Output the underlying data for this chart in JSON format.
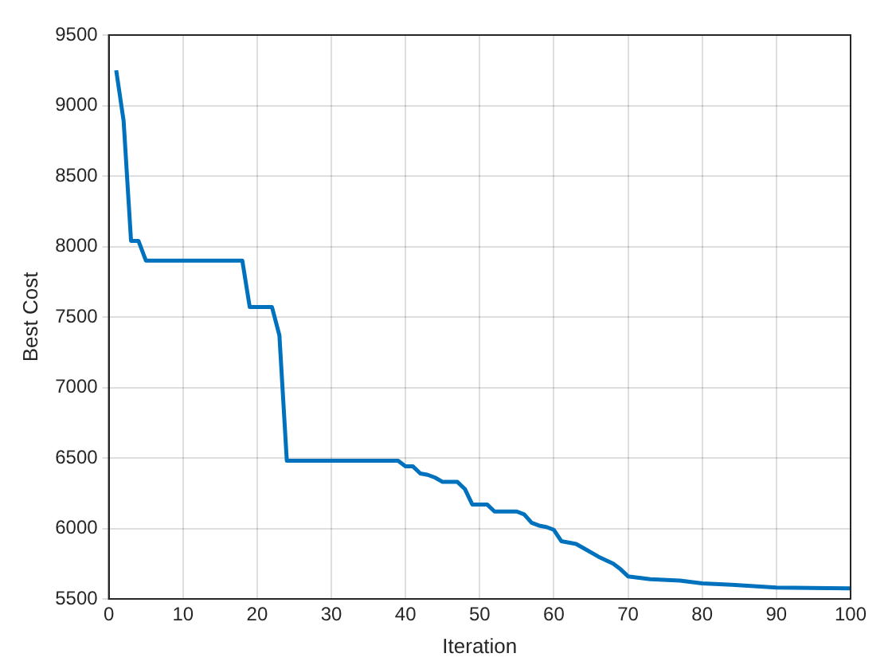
{
  "chart_data": {
    "type": "line",
    "xlabel": "Iteration",
    "ylabel": "Best Cost",
    "x": [
      1,
      2,
      3,
      4,
      5,
      18,
      19,
      22,
      23,
      24,
      39,
      40,
      41,
      42,
      43,
      44,
      45,
      47,
      48,
      49,
      50,
      51,
      52,
      55,
      56,
      57,
      58,
      59,
      60,
      61,
      63,
      64,
      66,
      68,
      69,
      70,
      73,
      77,
      80,
      84,
      90,
      100
    ],
    "series": [
      {
        "color": "#0072bd",
        "values": [
          9250,
          8890,
          8040,
          8040,
          7900,
          7900,
          7570,
          7570,
          7370,
          6480,
          6480,
          6440,
          6440,
          6390,
          6380,
          6360,
          6330,
          6330,
          6280,
          6170,
          6170,
          6170,
          6120,
          6120,
          6100,
          6040,
          6020,
          6010,
          5990,
          5910,
          5890,
          5860,
          5800,
          5750,
          5710,
          5660,
          5640,
          5630,
          5610,
          5600,
          5580,
          5575
        ]
      }
    ],
    "xlim": [
      0,
      100
    ],
    "xticks": [
      0,
      10,
      20,
      30,
      40,
      50,
      60,
      70,
      80,
      90,
      100
    ],
    "ylim": [
      5500,
      9500
    ],
    "yticks": [
      5500,
      6000,
      6500,
      7000,
      7500,
      8000,
      8500,
      9000,
      9500
    ],
    "grid": true,
    "legend": false,
    "marker": "none",
    "line_style": "solid"
  }
}
